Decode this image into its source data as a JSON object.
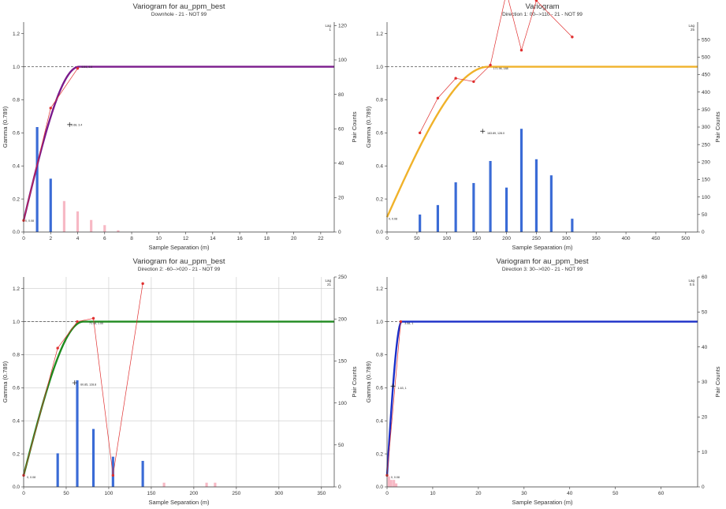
{
  "chart_data": [
    {
      "type": "line",
      "panel_id": "p0",
      "title": "Variogram for au_ppm_best",
      "subtitle": "Downhole - 21 - NOT 99",
      "xlabel": "Sample Separation (m)",
      "ylabel": "Gamma (0.789)",
      "y2label": "Pair Counts",
      "lag_label": "Lag",
      "lag_value": "1",
      "xlim": [
        0,
        23
      ],
      "xticks": [
        0,
        2,
        4,
        6,
        8,
        10,
        12,
        14,
        16,
        18,
        20,
        22
      ],
      "ylim": [
        0,
        1.27
      ],
      "yticks": [
        0,
        0.2,
        0.4,
        0.6,
        0.8,
        1.0,
        1.2
      ],
      "y2lim": [
        0,
        122
      ],
      "y2ticks": [
        0,
        20,
        40,
        60,
        80,
        100,
        120
      ],
      "grid": false,
      "model_color": "#7a1a8c",
      "model_style": "thick",
      "sill_line": 1.0,
      "nugget": 0.07,
      "range": 4.1,
      "model_label": "Model",
      "experimental": {
        "x": [
          0,
          2,
          4
        ],
        "y": [
          0.07,
          0.75,
          0.99
        ]
      },
      "exp_color": "#e03030",
      "bars": {
        "x": [
          1,
          2,
          3,
          4,
          5,
          6,
          7
        ],
        "counts": [
          61,
          31,
          18,
          12,
          7,
          4,
          1
        ],
        "colors": [
          "#3a6bd6",
          "#3a6bd6",
          "#f7b8c4",
          "#f7b8c4",
          "#f7b8c4",
          "#f7b8c4",
          "#f7b8c4"
        ]
      },
      "annotations": [
        {
          "x": 0,
          "y": 0.07,
          "text": "0, 0.08"
        },
        {
          "x": 4.15,
          "y": 1.0,
          "text": "4.04, 4.0"
        },
        {
          "x": 3.4,
          "y": 0.65,
          "text": "2.68, 3.4"
        }
      ],
      "cross": {
        "x": 3.4,
        "y": 0.65
      }
    },
    {
      "type": "line",
      "panel_id": "p1",
      "title": "Variogram",
      "subtitle": "Direction 1: 00-->110 - 21 - NOT 99",
      "xlabel": "Sample Separation (m)",
      "ylabel": "Gamma (0.789)",
      "y2label": "Pair Counts",
      "lag_label": "Lag",
      "lag_value": "25",
      "xlim": [
        0,
        520
      ],
      "xticks": [
        0,
        50,
        100,
        150,
        200,
        250,
        300,
        350,
        400,
        450,
        500
      ],
      "ylim": [
        0,
        1.27
      ],
      "yticks": [
        0,
        0.2,
        0.4,
        0.6,
        0.8,
        1.0,
        1.2
      ],
      "y2lim": [
        0,
        600
      ],
      "y2ticks": [
        0,
        50,
        100,
        150,
        200,
        250,
        300,
        350,
        400,
        450,
        500,
        550
      ],
      "grid": false,
      "model_color": "#f0b22a",
      "model_style": "thick",
      "sill_line": 1.0,
      "nugget": 0.09,
      "range": 170,
      "model_label": "Model",
      "experimental": {
        "x": [
          55,
          85,
          115,
          145,
          173,
          200,
          225,
          250,
          310
        ],
        "y": [
          0.6,
          0.81,
          0.93,
          0.91,
          1.01,
          1.45,
          1.1,
          1.4,
          1.18
        ]
      },
      "exp_color": "#e03030",
      "bars": {
        "x": [
          55,
          85,
          115,
          145,
          173,
          200,
          225,
          250,
          275,
          310
        ],
        "counts": [
          50,
          77,
          142,
          140,
          203,
          127,
          295,
          208,
          162,
          38
        ],
        "colors": [
          "#3a6bd6",
          "#3a6bd6",
          "#3a6bd6",
          "#3a6bd6",
          "#3a6bd6",
          "#3a6bd6",
          "#3a6bd6",
          "#3a6bd6",
          "#3a6bd6",
          "#3a6bd6"
        ]
      },
      "annotations": [
        {
          "x": 0,
          "y": 0.08,
          "text": "0, 0.08"
        },
        {
          "x": 175,
          "y": 0.99,
          "text": "171.96, 188"
        },
        {
          "x": 165,
          "y": 0.6,
          "text": "163.89, 128.0"
        }
      ],
      "cross": {
        "x": 160,
        "y": 0.61
      }
    },
    {
      "type": "line",
      "panel_id": "p2",
      "title": "Variogram for au_ppm_best",
      "subtitle": "Direction 2: -60-->020 - 21 - NOT 99",
      "xlabel": "Sample Separation (m)",
      "ylabel": "Gamma (0.789)",
      "y2label": "Pair Counts",
      "lag_label": "Lag",
      "lag_value": "21",
      "xlim": [
        0,
        365
      ],
      "xticks": [
        0,
        50,
        100,
        150,
        200,
        250,
        300,
        350
      ],
      "ylim": [
        0,
        1.27
      ],
      "yticks": [
        0,
        0.2,
        0.4,
        0.6,
        0.8,
        1.0,
        1.2
      ],
      "y2lim": [
        0,
        250
      ],
      "y2ticks": [
        0,
        50,
        100,
        150,
        200,
        250
      ],
      "grid": true,
      "model_color": "#1e8a1e",
      "model_style": "thick",
      "sill_line": 1.0,
      "nugget": 0.07,
      "range": 70,
      "model_label": "Model",
      "experimental": {
        "x": [
          0,
          40,
          63,
          82,
          105,
          140
        ],
        "y": [
          0.07,
          0.84,
          1.0,
          1.02,
          0.07,
          1.23
        ]
      },
      "exp_color": "#e03030",
      "bars": {
        "x": [
          40,
          63,
          82,
          105,
          140,
          165,
          215,
          225
        ],
        "counts": [
          40,
          127,
          69,
          36,
          31,
          5,
          5,
          5
        ],
        "colors": [
          "#3a6bd6",
          "#3a6bd6",
          "#3a6bd6",
          "#3a6bd6",
          "#3a6bd6",
          "#f7b8c4",
          "#f7b8c4",
          "#f7b8c4"
        ]
      },
      "annotations": [
        {
          "x": 2,
          "y": 0.06,
          "text": "0, 0.08"
        },
        {
          "x": 75,
          "y": 0.99,
          "text": "71.48, 1.00"
        },
        {
          "x": 65,
          "y": 0.62,
          "text": "60.85, 128.8"
        }
      ],
      "cross": {
        "x": 60,
        "y": 0.63
      }
    },
    {
      "type": "line",
      "panel_id": "p3",
      "title": "Variogram for au_ppm_best",
      "subtitle": "Direction 3: 30-->020 - 21 - NOT 99",
      "xlabel": "Sample Separation (m)",
      "ylabel": "Gamma (0.789)",
      "y2label": "Pair Counts",
      "lag_label": "Lag",
      "lag_value": "0.5",
      "xlim": [
        0,
        68
      ],
      "xticks": [
        0,
        10,
        20,
        30,
        40,
        50,
        60
      ],
      "ylim": [
        0,
        1.27
      ],
      "yticks": [
        0,
        0.2,
        0.4,
        0.6,
        0.8,
        1.0,
        1.2
      ],
      "y2lim": [
        0,
        60
      ],
      "y2ticks": [
        0,
        10,
        20,
        30,
        40,
        50,
        60
      ],
      "grid": false,
      "model_color": "#1a2fc8",
      "model_style": "thick",
      "sill_line": 1.0,
      "nugget": 0.07,
      "range": 3.2,
      "model_label": "Model",
      "experimental": {
        "x": [
          0,
          3
        ],
        "y": [
          0.07,
          1.0
        ]
      },
      "exp_color": "#e03030",
      "bars": {
        "x": [
          0.4,
          0.9,
          1.5,
          2.0
        ],
        "counts": [
          3,
          2,
          2,
          1
        ],
        "colors": [
          "#f7b8c4",
          "#f7b8c4",
          "#f7b8c4",
          "#f7b8c4"
        ]
      },
      "annotations": [
        {
          "x": 0.5,
          "y": 0.06,
          "text": "0, 0.08"
        },
        {
          "x": 3.5,
          "y": 0.99,
          "text": "3.58, 1"
        },
        {
          "x": 2,
          "y": 0.6,
          "text": "1.63, 1"
        }
      ],
      "cross": {
        "x": 1.3,
        "y": 0.61
      }
    }
  ]
}
